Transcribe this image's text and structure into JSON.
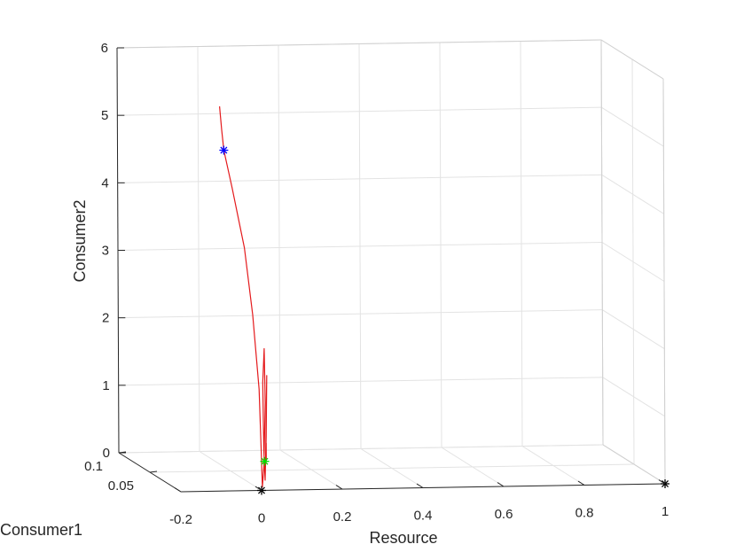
{
  "chart_data": {
    "type": "line3d",
    "title": "",
    "xlabel": "Resource",
    "ylabel": "Consumer1",
    "zlabel": "Consumer2",
    "xlim": [
      -0.2,
      1
    ],
    "ylim": [
      0,
      0.1
    ],
    "zlim": [
      0,
      6
    ],
    "x_ticks": [
      "-0.2",
      "0",
      "0.2",
      "0.4",
      "0.6",
      "0.8",
      "1"
    ],
    "y_ticks": [
      "0.05",
      "0.1"
    ],
    "z_ticks": [
      "0",
      "1",
      "2",
      "3",
      "4",
      "5",
      "6"
    ],
    "grid": true,
    "series": [
      {
        "color": "#e41a1c",
        "points": [
          [
            -0.1,
            0.0,
            5.7
          ],
          [
            -0.095,
            0.0,
            5.35
          ],
          [
            -0.09,
            0.0,
            5.05
          ],
          [
            -0.07,
            0.0,
            4.5
          ],
          [
            -0.04,
            0.0,
            3.6
          ],
          [
            -0.02,
            0.0,
            2.6
          ],
          [
            -0.005,
            0.0,
            1.5
          ],
          [
            0.0,
            0.0,
            0.5
          ],
          [
            0.002,
            0.0,
            0.05
          ],
          [
            0.006,
            0.0,
            0.35
          ],
          [
            0.01,
            0.0,
            1.3
          ],
          [
            0.008,
            0.0,
            2.1
          ],
          [
            0.004,
            0.0,
            1.6
          ],
          [
            0.006,
            0.0,
            0.6
          ],
          [
            0.009,
            0.0,
            0.15
          ],
          [
            0.012,
            0.0,
            0.8
          ],
          [
            0.014,
            0.0,
            1.7
          ],
          [
            0.012,
            0.0,
            1.0
          ],
          [
            0.01,
            0.0,
            0.35
          ],
          [
            0.012,
            0.0,
            0.7
          ],
          [
            0.012,
            0.0,
            0.42
          ]
        ]
      }
    ],
    "markers": [
      {
        "x": -0.09,
        "y": 0.0,
        "z": 5.05,
        "symbol": "*",
        "color": "#0000ff"
      },
      {
        "x": 0.008,
        "y": 0.0,
        "z": 0.43,
        "symbol": "*",
        "color": "#00dd00"
      },
      {
        "x": 0.0,
        "y": 0.0,
        "z": 0.0,
        "symbol": "*",
        "color": "#000000"
      },
      {
        "x": 1.0,
        "y": 0.0,
        "z": 0.0,
        "symbol": "*",
        "color": "#000000"
      }
    ]
  }
}
